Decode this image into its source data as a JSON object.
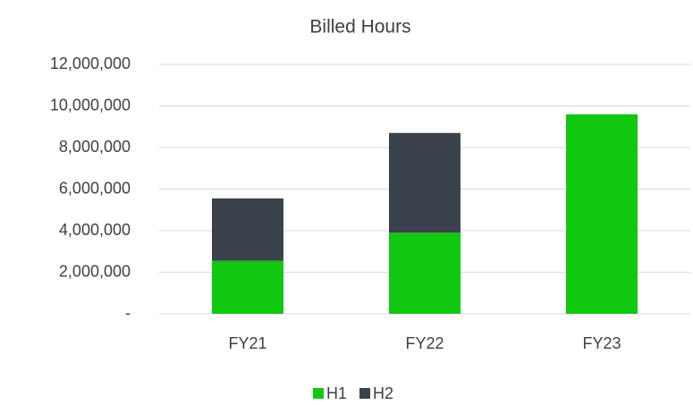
{
  "chart_data": {
    "type": "stacked_bar",
    "title": "Billed Hours",
    "categories": [
      "FY21",
      "FY22",
      "FY23"
    ],
    "series": [
      {
        "name": "H1",
        "color": "#11c811",
        "values": [
          2550000,
          3900000,
          9600000
        ]
      },
      {
        "name": "H2",
        "color": "#3a434b",
        "values": [
          3000000,
          4800000,
          null
        ]
      }
    ],
    "ylim": [
      0,
      12000000
    ],
    "yticks": [
      {
        "value": 0,
        "label": "-"
      },
      {
        "value": 2000000,
        "label": "2,000,000"
      },
      {
        "value": 4000000,
        "label": "4,000,000"
      },
      {
        "value": 6000000,
        "label": "6,000,000"
      },
      {
        "value": 8000000,
        "label": "8,000,000"
      },
      {
        "value": 10000000,
        "label": "10,000,000"
      },
      {
        "value": 12000000,
        "label": "12,000,000"
      }
    ],
    "grid": true,
    "legend": "bottom"
  }
}
